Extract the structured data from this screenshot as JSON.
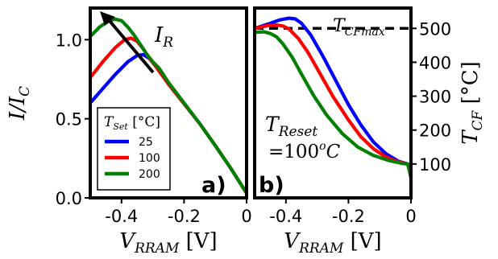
{
  "chart_data": [
    {
      "type": "line",
      "panel_label": "a)",
      "xlabel": {
        "base": "V",
        "sub": "RRAM",
        "unit": "[V]"
      },
      "ylabel": {
        "base": "I/I",
        "sub": "C"
      },
      "xlim": [
        -0.5,
        0
      ],
      "ylim": [
        0,
        1.2
      ],
      "xticks": [
        {
          "v": -0.4,
          "label": "-0.4"
        },
        {
          "v": -0.2,
          "label": "-0.2"
        },
        {
          "v": 0,
          "label": "0"
        }
      ],
      "yticks": [
        {
          "v": 0.0,
          "label": "0.0"
        },
        {
          "v": 0.5,
          "label": "0.5"
        },
        {
          "v": 1.0,
          "label": "1.0"
        }
      ],
      "annotation": {
        "base": "I",
        "sub": "R"
      },
      "legend": {
        "title": {
          "base": "T",
          "sub": "Set",
          "unit": "[°C]"
        },
        "location": "lower-left"
      },
      "series": [
        {
          "name": "25",
          "color": "#0000ff",
          "x": [
            -0.5,
            -0.46,
            -0.42,
            -0.38,
            -0.35,
            -0.33,
            -0.31,
            -0.29,
            -0.25,
            -0.2,
            -0.15,
            -0.1,
            -0.05,
            0
          ],
          "y": [
            0.6,
            0.69,
            0.78,
            0.86,
            0.9,
            0.905,
            0.88,
            0.83,
            0.72,
            0.595,
            0.47,
            0.33,
            0.185,
            0.03
          ]
        },
        {
          "name": "100",
          "color": "#ff0000",
          "x": [
            -0.5,
            -0.46,
            -0.42,
            -0.39,
            -0.37,
            -0.35,
            -0.33,
            -0.31,
            -0.29,
            -0.25,
            -0.2,
            -0.15,
            -0.1,
            -0.05,
            0
          ],
          "y": [
            0.76,
            0.86,
            0.95,
            1.0,
            1.01,
            0.99,
            0.94,
            0.88,
            0.83,
            0.72,
            0.595,
            0.47,
            0.33,
            0.185,
            0.03
          ]
        },
        {
          "name": "200",
          "color": "#008000",
          "x": [
            -0.5,
            -0.47,
            -0.44,
            -0.42,
            -0.4,
            -0.38,
            -0.36,
            -0.34,
            -0.32,
            -0.3,
            -0.28,
            -0.25,
            -0.2,
            -0.15,
            -0.1,
            -0.05,
            0
          ],
          "y": [
            1.02,
            1.08,
            1.12,
            1.13,
            1.12,
            1.08,
            1.03,
            0.97,
            0.91,
            0.86,
            0.82,
            0.73,
            0.6,
            0.47,
            0.33,
            0.185,
            0.03
          ]
        }
      ]
    },
    {
      "type": "line",
      "panel_label": "b)",
      "xlabel": {
        "base": "V",
        "sub": "RRAM",
        "unit": "[V]"
      },
      "ylabel": {
        "base": "T",
        "sub": "CF",
        "unit": "[°C]"
      },
      "xlim": [
        -0.5,
        0
      ],
      "ylim": [
        0,
        560
      ],
      "xticks": [
        {
          "v": -0.4,
          "label": "-0.4"
        },
        {
          "v": -0.2,
          "label": "-0.2"
        },
        {
          "v": 0,
          "label": "0"
        }
      ],
      "yticks": [
        {
          "v": 100,
          "label": "100"
        },
        {
          "v": 200,
          "label": "200"
        },
        {
          "v": 300,
          "label": "300"
        },
        {
          "v": 400,
          "label": "400"
        },
        {
          "v": 500,
          "label": "500"
        }
      ],
      "reference_line": {
        "y": 500,
        "style": "dashed",
        "label": {
          "base": "T",
          "sub": "CFmax"
        }
      },
      "annotation": {
        "line1": {
          "base": "T",
          "sub": "Reset"
        },
        "line2": "=100",
        "sup": "o",
        "unit": "C"
      },
      "series": [
        {
          "name": "25",
          "color": "#0000ff",
          "x": [
            -0.5,
            -0.45,
            -0.42,
            -0.39,
            -0.37,
            -0.35,
            -0.32,
            -0.28,
            -0.24,
            -0.2,
            -0.16,
            -0.12,
            -0.08,
            -0.04,
            -0.01,
            0
          ],
          "y": [
            500,
            515,
            525,
            530,
            528,
            515,
            480,
            415,
            345,
            275,
            215,
            165,
            130,
            108,
            100,
            60
          ]
        },
        {
          "name": "100",
          "color": "#ff0000",
          "x": [
            -0.5,
            -0.46,
            -0.43,
            -0.41,
            -0.39,
            -0.36,
            -0.33,
            -0.29,
            -0.25,
            -0.2,
            -0.16,
            -0.12,
            -0.08,
            -0.04,
            -0.01,
            0
          ],
          "y": [
            500,
            508,
            510,
            507,
            498,
            470,
            430,
            365,
            300,
            230,
            180,
            145,
            120,
            106,
            100,
            60
          ]
        },
        {
          "name": "200",
          "color": "#008000",
          "x": [
            -0.5,
            -0.47,
            -0.45,
            -0.43,
            -0.41,
            -0.38,
            -0.35,
            -0.31,
            -0.27,
            -0.22,
            -0.17,
            -0.12,
            -0.07,
            -0.03,
            -0.01,
            0
          ],
          "y": [
            488,
            490,
            485,
            475,
            455,
            415,
            365,
            300,
            245,
            190,
            150,
            125,
            110,
            102,
            100,
            60
          ]
        }
      ]
    }
  ]
}
